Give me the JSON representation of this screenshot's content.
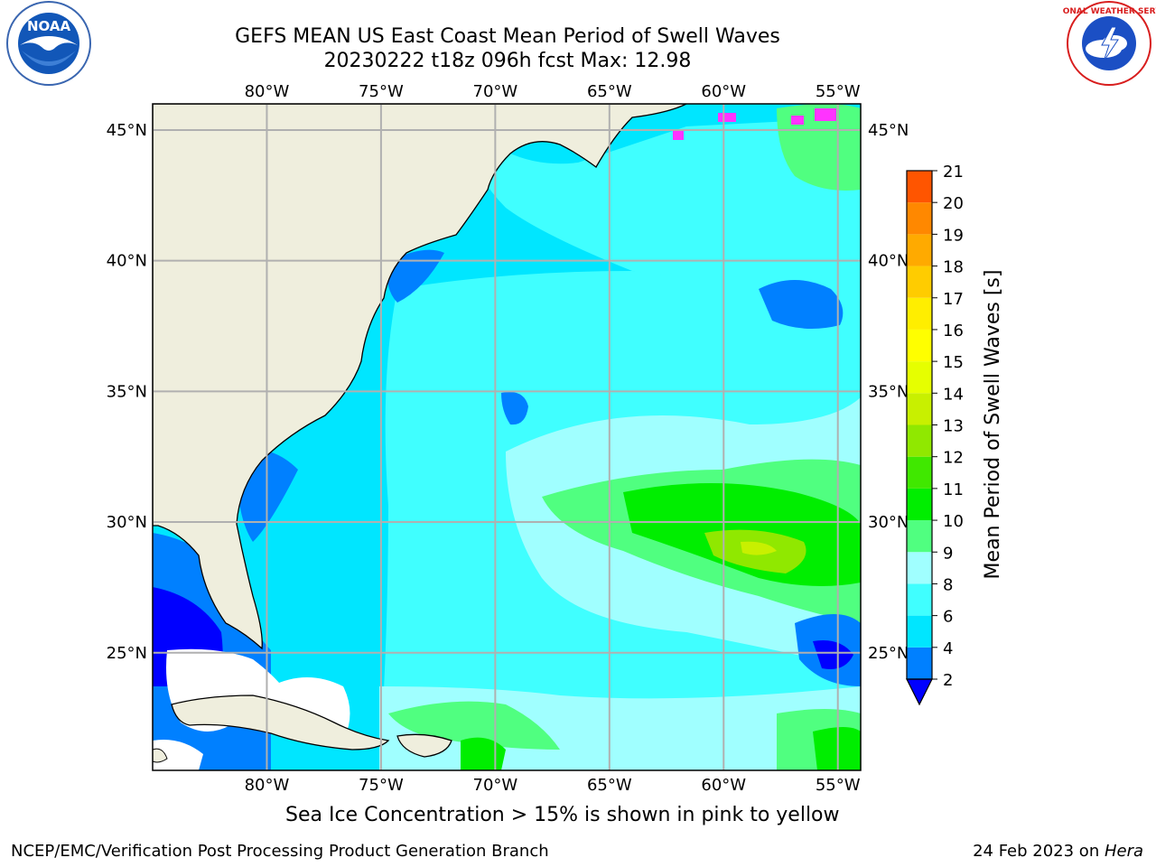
{
  "header": {
    "title_line1": "GEFS MEAN US East Coast Mean Period of Swell Waves",
    "title_line2": "20230222 t18z 096h fcst   Max: 12.98"
  },
  "logos": {
    "left": "noaa-logo",
    "left_text": "NOAA",
    "right": "national-weather-service-logo",
    "right_text": "NATIONAL WEATHER SERVICE"
  },
  "map": {
    "projection": "lat-lon",
    "lon_range": [
      -85,
      -54
    ],
    "lat_range": [
      20.5,
      46
    ],
    "lon_ticks": [
      "80°W",
      "75°W",
      "70°W",
      "65°W",
      "60°W",
      "55°W"
    ],
    "lat_ticks": [
      "45°N",
      "40°N",
      "35°N",
      "30°N",
      "25°N"
    ],
    "grid": true,
    "land_color": "#efeedd",
    "no_data_color": "#ffffff"
  },
  "colorbar": {
    "label": "Mean Period of Swell Waves [s]",
    "ticks": [
      "2",
      "4",
      "6",
      "8",
      "9",
      "10",
      "11",
      "12",
      "13",
      "14",
      "15",
      "16",
      "17",
      "18",
      "19",
      "20",
      "21"
    ],
    "under_color": "#0000ff",
    "colors": [
      "#0080ff",
      "#00e6ff",
      "#40ffff",
      "#a0ffff",
      "#50ff80",
      "#00ee00",
      "#40e800",
      "#90e800",
      "#c8f000",
      "#e6ff00",
      "#ffff00",
      "#ffee00",
      "#ffcc00",
      "#ffaa00",
      "#ff8800",
      "#ff5500",
      "#ff2200",
      "#ff0000"
    ]
  },
  "footer": {
    "note": "Sea Ice Concentration > 15% is shown in pink to yellow",
    "credit": "NCEP/EMC/Verification Post Processing Product Generation Branch",
    "date": "24 Feb 2023 on ",
    "host": "Hera"
  }
}
